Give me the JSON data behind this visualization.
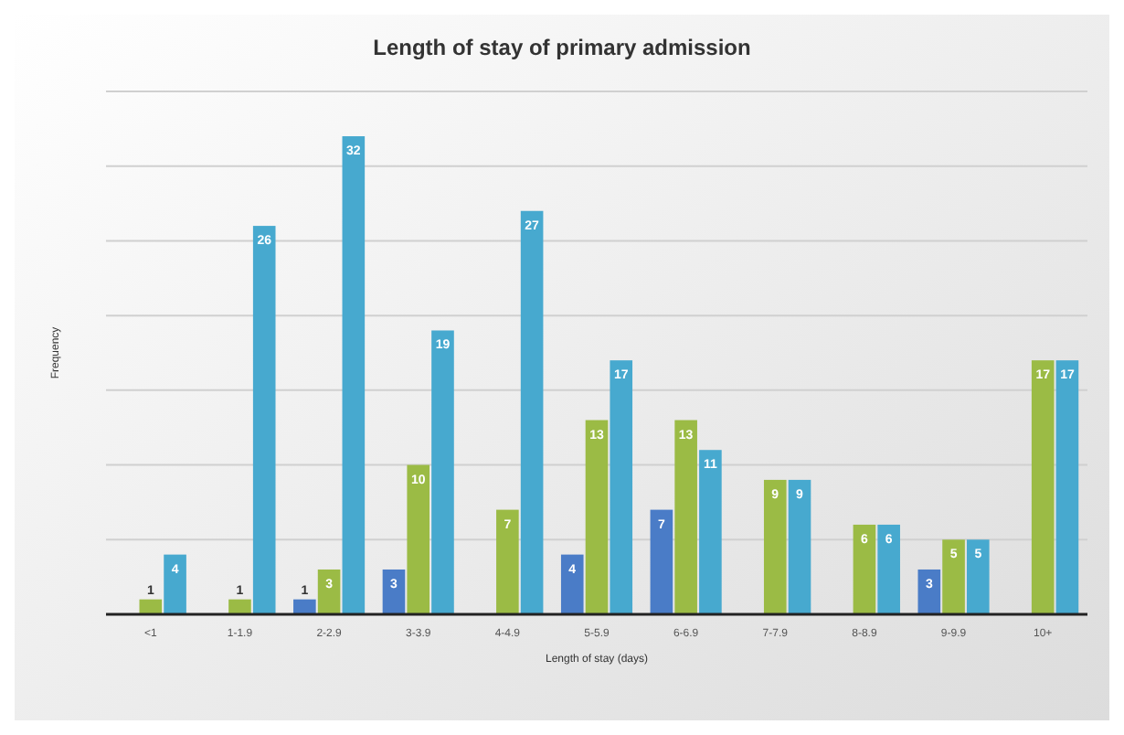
{
  "chart_data": {
    "type": "bar",
    "title": "Length of stay of primary admission",
    "xlabel": "Length of stay (days)",
    "ylabel": "Frequency",
    "categories": [
      "<1",
      "1-1.9",
      "2-2.9",
      "3-3.9",
      "4-4.9",
      "5-5.9",
      "6-6.9",
      "7-7.9",
      "8-8.9",
      "9-9.9",
      "10+"
    ],
    "series": [
      {
        "color": "#4a7cc7",
        "values": [
          null,
          null,
          1,
          3,
          null,
          4,
          7,
          null,
          null,
          3,
          null
        ]
      },
      {
        "color": "#9bbb45",
        "values": [
          1,
          1,
          3,
          10,
          7,
          13,
          13,
          9,
          6,
          5,
          17
        ]
      },
      {
        "color": "#47a9cf",
        "values": [
          4,
          26,
          32,
          19,
          27,
          17,
          11,
          9,
          6,
          5,
          17
        ]
      }
    ],
    "ylim": [
      0,
      35
    ],
    "yticks": [
      {
        "value": 0,
        "label": null
      },
      {
        "value": 5,
        "label": null
      },
      {
        "value": 10,
        "label": null
      },
      {
        "value": 15,
        "label": null
      },
      {
        "value": 20,
        "label": null
      },
      {
        "value": 25,
        "label": null
      },
      {
        "value": 30,
        "label": null
      },
      {
        "value": 35,
        "label": null
      }
    ],
    "tick_labels": "x",
    "grid": "y",
    "data_labels": true
  }
}
